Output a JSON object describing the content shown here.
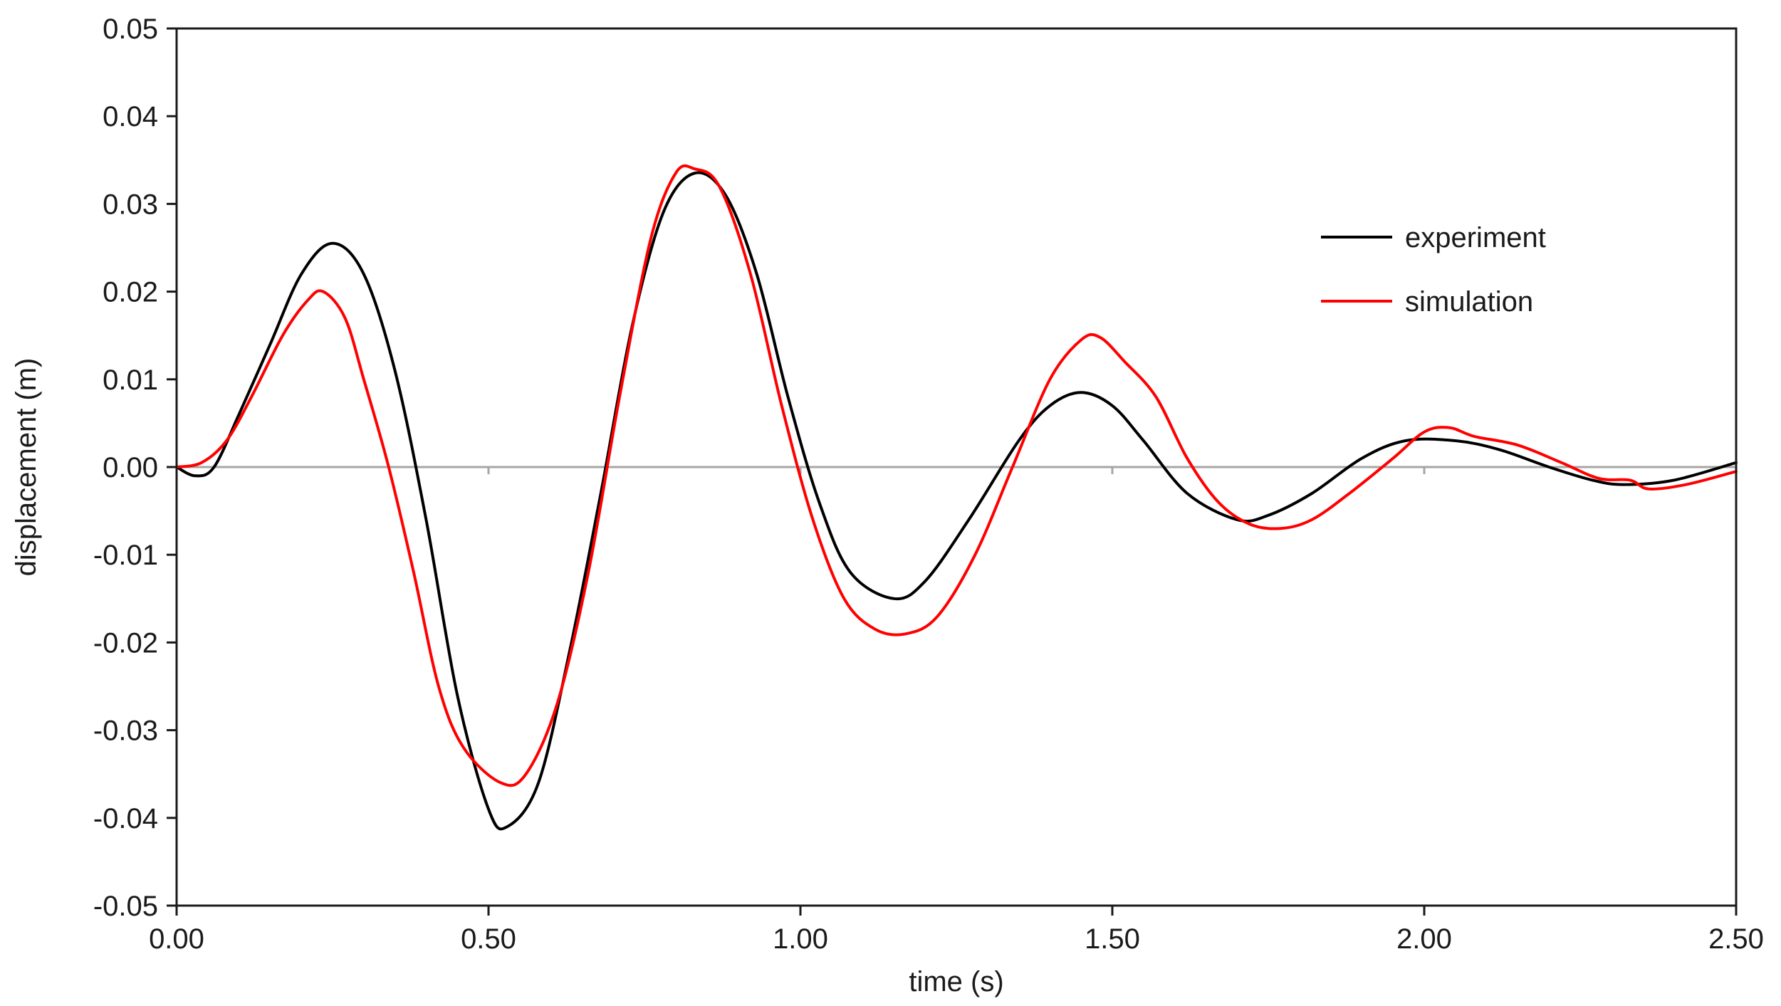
{
  "chart_data": {
    "type": "line",
    "title": "",
    "xlabel": "time (s)",
    "ylabel": "displacement (m)",
    "xlim": [
      0,
      2.5
    ],
    "ylim": [
      -0.05,
      0.05
    ],
    "x_ticks": [
      "0.00",
      "0.50",
      "1.00",
      "1.50",
      "2.00",
      "2.50"
    ],
    "y_ticks": [
      "0.05",
      "0.04",
      "0.03",
      "0.02",
      "0.01",
      "0.00",
      "-0.01",
      "-0.02",
      "-0.03",
      "-0.04",
      "-0.05"
    ],
    "grid": false,
    "zero_line": true,
    "legend_position": "top-right",
    "series": [
      {
        "name": "experiment",
        "color": "#000000",
        "points": [
          [
            0.0,
            0.0
          ],
          [
            0.03,
            -0.001
          ],
          [
            0.06,
            0.0
          ],
          [
            0.1,
            0.006
          ],
          [
            0.15,
            0.014
          ],
          [
            0.2,
            0.022
          ],
          [
            0.25,
            0.0255
          ],
          [
            0.3,
            0.022
          ],
          [
            0.35,
            0.011
          ],
          [
            0.4,
            -0.006
          ],
          [
            0.45,
            -0.026
          ],
          [
            0.5,
            -0.039
          ],
          [
            0.53,
            -0.041
          ],
          [
            0.58,
            -0.036
          ],
          [
            0.63,
            -0.021
          ],
          [
            0.68,
            -0.003
          ],
          [
            0.73,
            0.016
          ],
          [
            0.78,
            0.029
          ],
          [
            0.83,
            0.0335
          ],
          [
            0.88,
            0.031
          ],
          [
            0.93,
            0.022
          ],
          [
            0.98,
            0.008
          ],
          [
            1.03,
            -0.004
          ],
          [
            1.08,
            -0.012
          ],
          [
            1.15,
            -0.015
          ],
          [
            1.2,
            -0.013
          ],
          [
            1.27,
            -0.006
          ],
          [
            1.35,
            0.003
          ],
          [
            1.4,
            0.007
          ],
          [
            1.45,
            0.0085
          ],
          [
            1.5,
            0.007
          ],
          [
            1.55,
            0.003
          ],
          [
            1.62,
            -0.003
          ],
          [
            1.7,
            -0.006
          ],
          [
            1.75,
            -0.0055
          ],
          [
            1.82,
            -0.003
          ],
          [
            1.9,
            0.001
          ],
          [
            1.97,
            0.003
          ],
          [
            2.05,
            0.003
          ],
          [
            2.12,
            0.002
          ],
          [
            2.2,
            0.0
          ],
          [
            2.27,
            -0.0015
          ],
          [
            2.32,
            -0.002
          ],
          [
            2.4,
            -0.0015
          ],
          [
            2.5,
            0.0005
          ]
        ]
      },
      {
        "name": "simulation",
        "color": "#ff0000",
        "points": [
          [
            0.0,
            0.0
          ],
          [
            0.04,
            0.0005
          ],
          [
            0.08,
            0.003
          ],
          [
            0.12,
            0.008
          ],
          [
            0.17,
            0.015
          ],
          [
            0.21,
            0.019
          ],
          [
            0.235,
            0.02
          ],
          [
            0.27,
            0.017
          ],
          [
            0.3,
            0.01
          ],
          [
            0.34,
            0.0
          ],
          [
            0.38,
            -0.012
          ],
          [
            0.42,
            -0.025
          ],
          [
            0.46,
            -0.032
          ],
          [
            0.52,
            -0.036
          ],
          [
            0.56,
            -0.035
          ],
          [
            0.61,
            -0.027
          ],
          [
            0.66,
            -0.012
          ],
          [
            0.71,
            0.008
          ],
          [
            0.76,
            0.026
          ],
          [
            0.8,
            0.0335
          ],
          [
            0.83,
            0.034
          ],
          [
            0.87,
            0.032
          ],
          [
            0.92,
            0.022
          ],
          [
            0.97,
            0.007
          ],
          [
            1.02,
            -0.006
          ],
          [
            1.07,
            -0.015
          ],
          [
            1.12,
            -0.0185
          ],
          [
            1.17,
            -0.019
          ],
          [
            1.22,
            -0.017
          ],
          [
            1.28,
            -0.01
          ],
          [
            1.34,
            0.0
          ],
          [
            1.4,
            0.01
          ],
          [
            1.45,
            0.0145
          ],
          [
            1.48,
            0.0148
          ],
          [
            1.52,
            0.012
          ],
          [
            1.57,
            0.008
          ],
          [
            1.62,
            0.001
          ],
          [
            1.67,
            -0.004
          ],
          [
            1.72,
            -0.0065
          ],
          [
            1.77,
            -0.007
          ],
          [
            1.82,
            -0.006
          ],
          [
            1.88,
            -0.003
          ],
          [
            1.95,
            0.001
          ],
          [
            2.0,
            0.004
          ],
          [
            2.04,
            0.0045
          ],
          [
            2.08,
            0.0035
          ],
          [
            2.15,
            0.0025
          ],
          [
            2.22,
            0.0005
          ],
          [
            2.28,
            -0.0013
          ],
          [
            2.33,
            -0.0015
          ],
          [
            2.36,
            -0.0025
          ],
          [
            2.42,
            -0.002
          ],
          [
            2.5,
            -0.0005
          ]
        ]
      }
    ]
  }
}
